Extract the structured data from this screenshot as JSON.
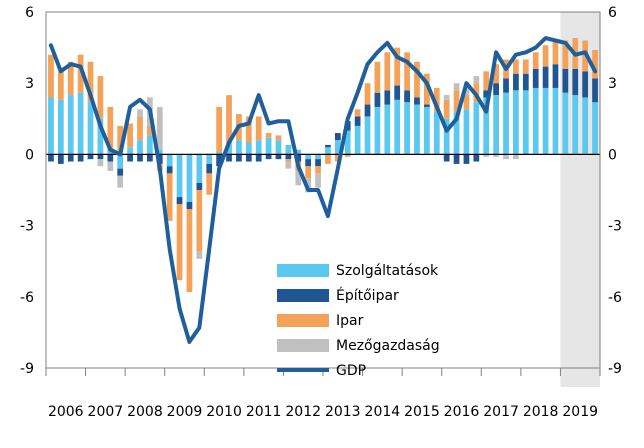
{
  "chart_data": {
    "type": "bar",
    "stacked": true,
    "overlay_line": "GDP",
    "x_axis_labels": [
      "2006",
      "2007",
      "2008",
      "2009",
      "2010",
      "2011",
      "2012",
      "2013",
      "2014",
      "2015",
      "2016",
      "2017",
      "2018",
      "2019"
    ],
    "quarters": [
      "2006Q1",
      "2006Q2",
      "2006Q3",
      "2006Q4",
      "2007Q1",
      "2007Q2",
      "2007Q3",
      "2007Q4",
      "2008Q1",
      "2008Q2",
      "2008Q3",
      "2008Q4",
      "2009Q1",
      "2009Q2",
      "2009Q3",
      "2009Q4",
      "2010Q1",
      "2010Q2",
      "2010Q3",
      "2010Q4",
      "2011Q1",
      "2011Q2",
      "2011Q3",
      "2011Q4",
      "2012Q1",
      "2012Q2",
      "2012Q3",
      "2012Q4",
      "2013Q1",
      "2013Q2",
      "2013Q3",
      "2013Q4",
      "2014Q1",
      "2014Q2",
      "2014Q3",
      "2014Q4",
      "2015Q1",
      "2015Q2",
      "2015Q3",
      "2015Q4",
      "2016Q1",
      "2016Q2",
      "2016Q3",
      "2016Q4",
      "2017Q1",
      "2017Q2",
      "2017Q3",
      "2017Q4",
      "2018Q1",
      "2018Q2",
      "2018Q3",
      "2018Q4",
      "2019Q1",
      "2019Q2",
      "2019Q3",
      "2019Q4"
    ],
    "ylim": [
      -9,
      6
    ],
    "yticks": [
      -9,
      -6,
      -3,
      0,
      3,
      6
    ],
    "y_axis_right": true,
    "shaded_period": {
      "from": "2019Q1",
      "to": "2019Q4"
    },
    "legend_position": "bottom-right",
    "colors": {
      "services": "#5bc8f0",
      "construction": "#1f5592",
      "industry": "#f4a25a",
      "agriculture": "#c0c0c0",
      "gdp": "#1e5f9c",
      "shade": "#e6e6e6"
    },
    "series": [
      {
        "name": "Szolgáltatások",
        "key": "services",
        "kind": "bar",
        "values": [
          2.4,
          2.3,
          2.5,
          2.6,
          2.2,
          1.5,
          0.2,
          -0.6,
          0.3,
          0.6,
          0.8,
          0.2,
          -0.5,
          -1.8,
          -2.0,
          -1.2,
          -0.4,
          0.1,
          0.5,
          0.6,
          0.5,
          0.6,
          0.7,
          0.6,
          0.4,
          0.2,
          -0.2,
          -0.2,
          0.3,
          0.6,
          1.0,
          1.2,
          1.6,
          2.0,
          2.1,
          2.3,
          2.2,
          2.1,
          2.0,
          1.8,
          1.5,
          1.8,
          1.9,
          2.2,
          2.4,
          2.5,
          2.6,
          2.7,
          2.7,
          2.8,
          2.8,
          2.8,
          2.6,
          2.5,
          2.4,
          2.2
        ]
      },
      {
        "name": "Építőipar",
        "key": "construction",
        "kind": "bar",
        "values": [
          -0.3,
          -0.4,
          -0.3,
          -0.3,
          -0.2,
          -0.2,
          -0.3,
          -0.3,
          -0.3,
          -0.3,
          -0.3,
          -0.4,
          -0.3,
          -0.3,
          -0.3,
          -0.3,
          -0.4,
          -0.5,
          -0.3,
          -0.3,
          -0.3,
          -0.3,
          -0.2,
          -0.2,
          -0.2,
          -0.3,
          -0.3,
          -0.3,
          0.1,
          0.3,
          0.4,
          0.4,
          0.5,
          0.6,
          0.6,
          0.6,
          0.5,
          0.3,
          0.1,
          0.0,
          -0.3,
          -0.4,
          -0.4,
          -0.3,
          0.3,
          0.5,
          0.6,
          0.7,
          0.7,
          0.8,
          0.9,
          1.0,
          1.0,
          1.1,
          1.1,
          1.0
        ]
      },
      {
        "name": "Ipar",
        "key": "industry",
        "kind": "bar",
        "values": [
          1.8,
          1.2,
          1.4,
          1.6,
          1.7,
          1.8,
          1.8,
          1.2,
          1.0,
          1.0,
          0.4,
          -0.3,
          -2.0,
          -3.2,
          -3.5,
          -2.6,
          -0.9,
          1.9,
          2.0,
          1.1,
          1.1,
          1.0,
          0.2,
          0.2,
          -0.1,
          -0.4,
          -0.5,
          -0.3,
          -0.4,
          -0.3,
          -0.1,
          0.3,
          0.9,
          1.3,
          1.6,
          1.6,
          1.6,
          1.5,
          1.3,
          1.0,
          0.8,
          0.9,
          0.6,
          0.8,
          0.8,
          0.8,
          0.8,
          0.6,
          0.6,
          0.7,
          0.9,
          1.0,
          1.2,
          1.3,
          1.3,
          1.2
        ]
      },
      {
        "name": "Mezőgazdaság",
        "key": "agriculture",
        "kind": "bar",
        "values": [
          0.0,
          0.0,
          0.0,
          0.0,
          0.0,
          -0.3,
          -0.4,
          -0.5,
          0.0,
          0.3,
          1.2,
          1.8,
          0.0,
          0.0,
          0.0,
          -0.3,
          0.0,
          0.0,
          0.0,
          0.0,
          0.0,
          0.0,
          0.0,
          0.0,
          -0.3,
          -0.6,
          -0.6,
          -0.6,
          0.0,
          0.0,
          0.0,
          0.0,
          0.0,
          0.0,
          0.0,
          0.0,
          0.0,
          0.0,
          0.0,
          0.0,
          0.2,
          0.3,
          0.3,
          0.3,
          -0.1,
          -0.1,
          -0.2,
          -0.2,
          0.0,
          0.0,
          0.0,
          0.0,
          0.0,
          0.0,
          0.0,
          0.0
        ]
      },
      {
        "name": "GDP",
        "key": "gdp",
        "kind": "line",
        "values": [
          4.6,
          3.5,
          3.8,
          3.7,
          2.5,
          1.2,
          0.2,
          0.0,
          2.0,
          2.3,
          1.9,
          -0.6,
          -4.0,
          -6.5,
          -7.9,
          -7.3,
          -4.0,
          -0.6,
          0.5,
          1.2,
          1.3,
          2.5,
          1.3,
          1.4,
          1.4,
          -0.5,
          -1.5,
          -1.5,
          -2.6,
          -0.6,
          1.5,
          2.6,
          3.8,
          4.3,
          4.7,
          4.1,
          3.9,
          3.5,
          3.0,
          2.0,
          1.0,
          1.5,
          3.0,
          2.5,
          1.8,
          4.3,
          3.6,
          4.2,
          4.3,
          4.5,
          4.9,
          4.8,
          4.7,
          4.2,
          4.3,
          3.5
        ]
      }
    ]
  }
}
